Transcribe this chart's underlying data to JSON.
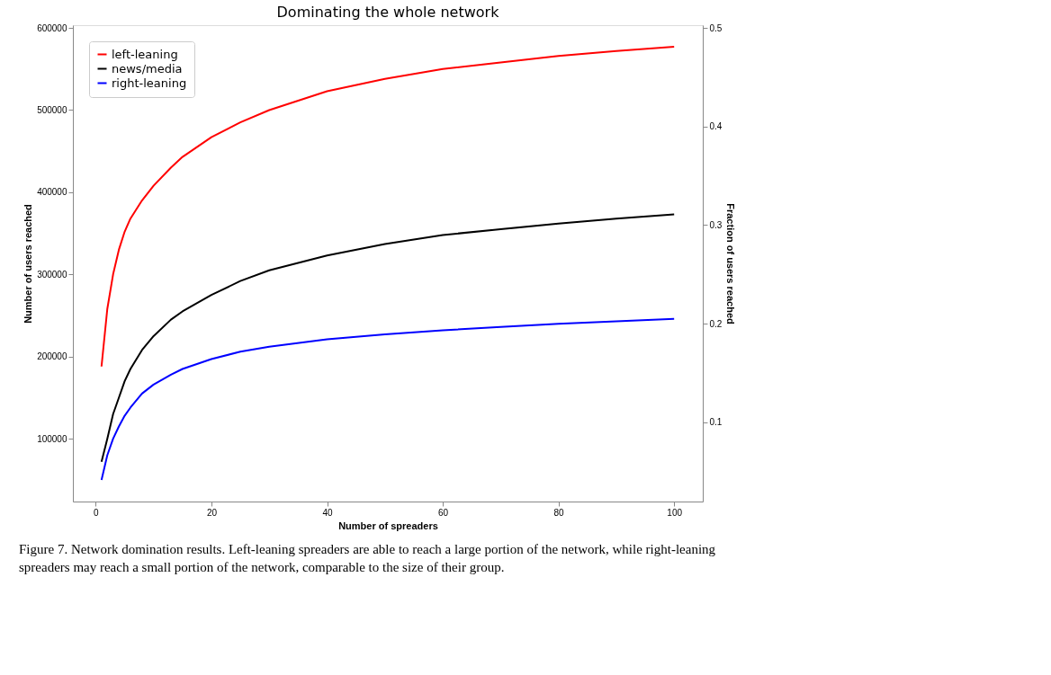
{
  "chart_data": {
    "type": "line",
    "title": "Dominating the whole network",
    "xlabel": "Number of spreaders",
    "ylabel": "Number of users reached",
    "y2label": "Fraction of users reached",
    "x": [
      1,
      2,
      3,
      4,
      5,
      6,
      8,
      10,
      13,
      15,
      20,
      25,
      30,
      40,
      50,
      60,
      70,
      80,
      90,
      100
    ],
    "series": [
      {
        "name": "left-leaning",
        "color": "#ff0000",
        "values": [
          188000,
          258000,
          300000,
          330000,
          352000,
          368000,
          390000,
          408000,
          430000,
          443000,
          467000,
          485000,
          500000,
          523000,
          538000,
          550000,
          558000,
          566000,
          572000,
          577000
        ]
      },
      {
        "name": "news/media",
        "color": "#000000",
        "values": [
          72000,
          100000,
          130000,
          150000,
          170000,
          185000,
          208000,
          225000,
          245000,
          255000,
          275000,
          292000,
          305000,
          323000,
          337000,
          348000,
          355000,
          362000,
          368000,
          373000
        ]
      },
      {
        "name": "right-leaning",
        "color": "#0000ff",
        "values": [
          50000,
          80000,
          100000,
          115000,
          128000,
          138000,
          155000,
          166000,
          178000,
          185000,
          197000,
          206000,
          212000,
          221000,
          227000,
          232000,
          236000,
          240000,
          243000,
          246000
        ]
      }
    ],
    "xlim": [
      -3.95,
      104.95
    ],
    "xticks": [
      0,
      20,
      40,
      60,
      80,
      100
    ],
    "ylim": [
      23650,
      603350
    ],
    "yticks": [
      100000,
      200000,
      300000,
      400000,
      500000,
      600000
    ],
    "y2lim": [
      0.0197,
      0.5028
    ],
    "y2ticks": [
      0.1,
      0.2,
      0.3,
      0.4,
      0.5
    ],
    "legend": "top left",
    "grid": false,
    "marker": "none",
    "line_style": "solid",
    "annotations": [
      "Figure 7. Network domination results. Left-leaning spreaders are able to reach a large portion of the network, while right-leaning spreaders may reach a small portion of the network, comparable to the size of their group."
    ]
  }
}
